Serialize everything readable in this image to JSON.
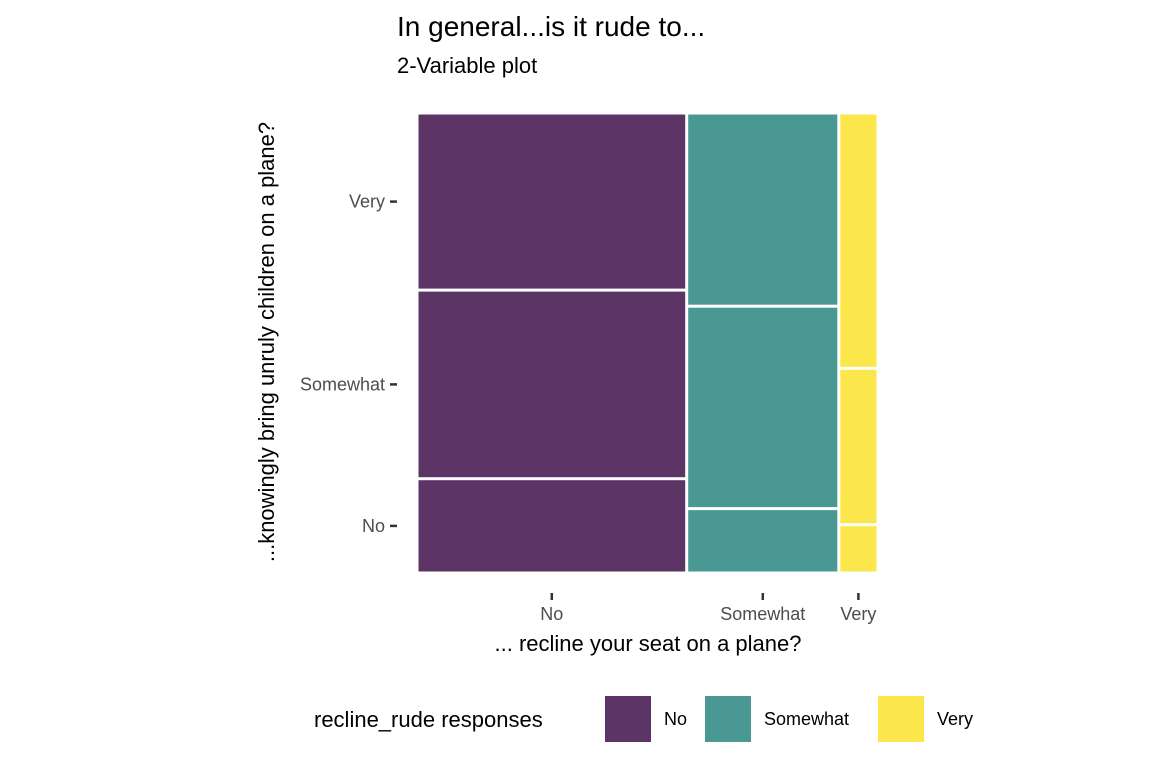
{
  "chart_data": {
    "type": "mosaic",
    "title": "In general...is it rude to...",
    "subtitle": "2-Variable plot",
    "xlabel": "... recline your seat on a plane?",
    "ylabel": "...knowingly bring unruly children on a plane?",
    "x_categories": [
      "No",
      "Somewhat",
      "Very"
    ],
    "y_categories": [
      "No",
      "Somewhat",
      "Very"
    ],
    "x_proportions": [
      0.585,
      0.33,
      0.085
    ],
    "y_proportions_by_x": [
      [
        0.205,
        0.41,
        0.385
      ],
      [
        0.14,
        0.44,
        0.42
      ],
      [
        0.105,
        0.34,
        0.555
      ]
    ],
    "fill_by": "x",
    "colors": {
      "No": "#5c3566",
      "Somewhat": "#4a9893",
      "Very": "#fbe74b"
    },
    "legend": {
      "title": "recline_rude responses",
      "position": "bottom",
      "entries": [
        "No",
        "Somewhat",
        "Very"
      ]
    },
    "grid": false
  }
}
